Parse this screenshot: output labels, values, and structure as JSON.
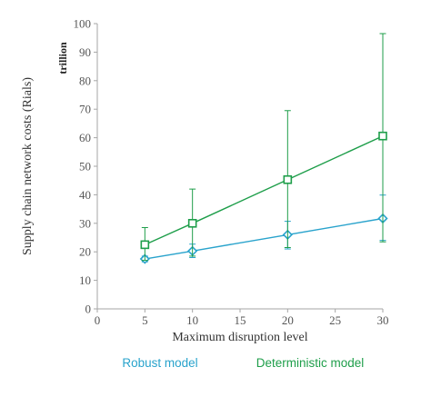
{
  "chart_data": {
    "type": "line",
    "title": "",
    "xlabel": "Maximum disruption level",
    "ylabel": "Supply chain network costs (Rials)",
    "unit_label": "trillion",
    "xlim": [
      0,
      30
    ],
    "ylim": [
      0,
      100
    ],
    "x_ticks": [
      "0",
      "5",
      "10",
      "15",
      "20",
      "25",
      "30"
    ],
    "y_ticks": [
      "0",
      "10",
      "20",
      "30",
      "40",
      "50",
      "60",
      "70",
      "80",
      "90",
      "100"
    ],
    "grid": false,
    "legend_position": "bottom",
    "series": [
      {
        "name": "Robust model",
        "color": "#29a3cc",
        "marker": "diamond",
        "x": [
          5,
          10,
          20,
          30
        ],
        "y": [
          17.5,
          20.3,
          26,
          31.7
        ],
        "err_high": [
          18.5,
          22.7,
          30.7,
          39.9
        ],
        "err_low": [
          16.5,
          18,
          21,
          24
        ]
      },
      {
        "name": "Deterministic model",
        "color": "#1e9e4a",
        "marker": "square",
        "x": [
          5,
          10,
          20,
          30
        ],
        "y": [
          22.5,
          30,
          45.3,
          60.6
        ],
        "err_high": [
          28.5,
          42,
          69.5,
          96.5
        ],
        "err_low": [
          17,
          18.5,
          21.5,
          23.5
        ]
      }
    ]
  }
}
